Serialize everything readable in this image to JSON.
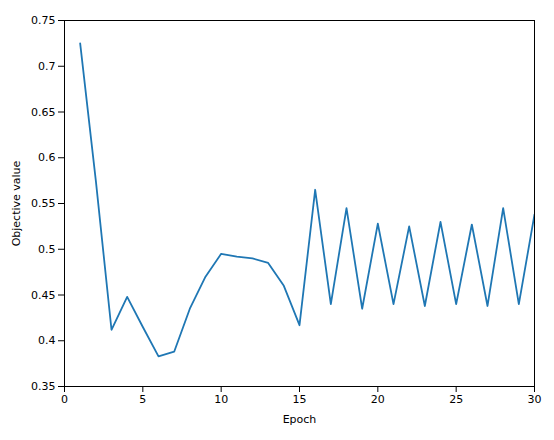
{
  "chart_data": {
    "type": "line",
    "x": [
      1,
      2,
      3,
      4,
      5,
      6,
      7,
      8,
      9,
      10,
      11,
      12,
      13,
      14,
      15,
      16,
      17,
      18,
      19,
      20,
      21,
      22,
      23,
      24,
      25,
      26,
      27,
      28,
      29,
      30
    ],
    "values": [
      0.725,
      0.575,
      0.412,
      0.448,
      0.415,
      0.383,
      0.388,
      0.435,
      0.47,
      0.495,
      0.492,
      0.49,
      0.485,
      0.46,
      0.417,
      0.565,
      0.44,
      0.545,
      0.435,
      0.528,
      0.44,
      0.525,
      0.438,
      0.53,
      0.44,
      0.527,
      0.438,
      0.545,
      0.44,
      0.538
    ],
    "color": "#1f77b4",
    "xlabel": "Epoch",
    "ylabel": "Objective value",
    "xlim": [
      0,
      30
    ],
    "ylim": [
      0.35,
      0.75
    ],
    "xticks": [
      0,
      5,
      10,
      15,
      20,
      25,
      30
    ],
    "yticks": [
      0.35,
      0.4,
      0.45,
      0.5,
      0.55,
      0.6,
      0.65,
      0.7,
      0.75
    ],
    "grid": false
  }
}
